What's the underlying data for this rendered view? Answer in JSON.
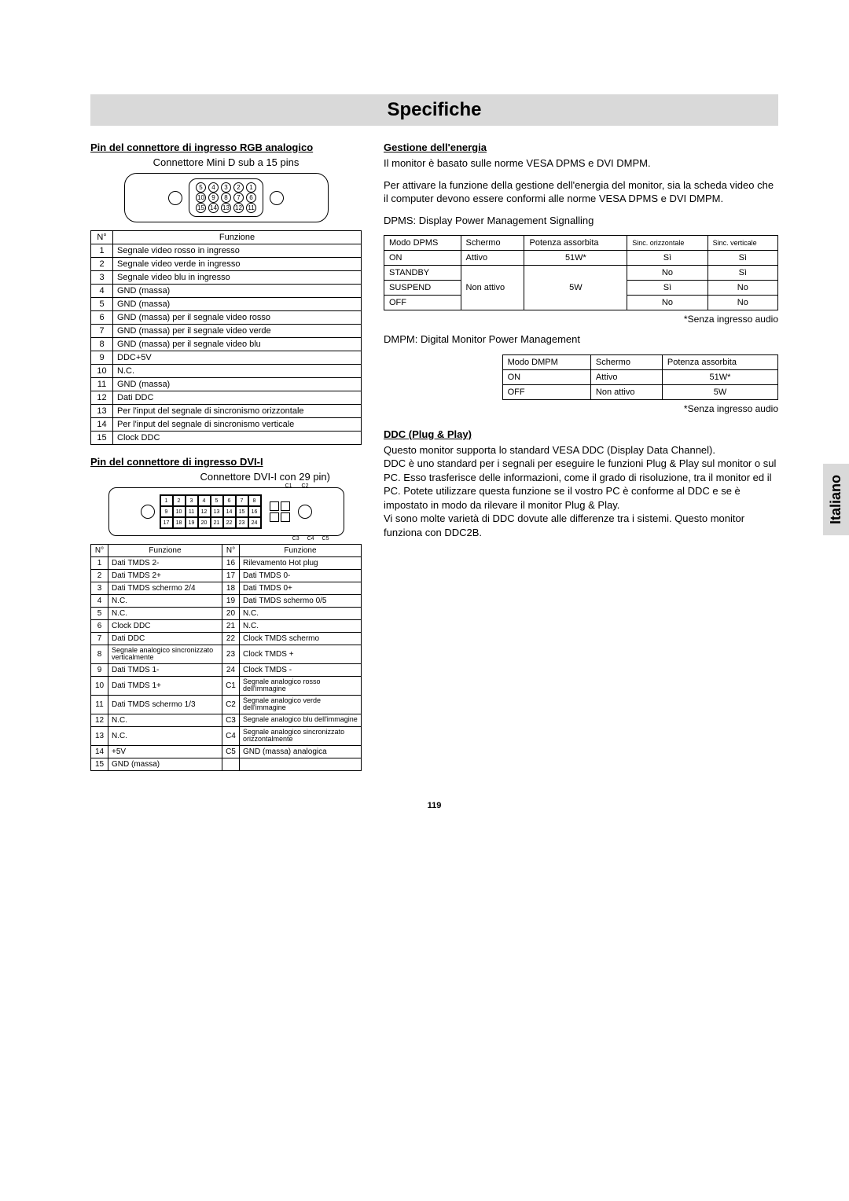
{
  "page": {
    "title": "Specifiche",
    "number": "119",
    "language_tab": "Italiano"
  },
  "left": {
    "rgb": {
      "heading": "Pin del connettore di ingresso RGB analogico",
      "sub": "Connettore Mini D sub a 15 pins",
      "th_no": "N°",
      "th_fn": "Funzione",
      "pins_row1": [
        "5",
        "4",
        "3",
        "2",
        "1"
      ],
      "pins_row2": [
        "10",
        "9",
        "8",
        "7",
        "6"
      ],
      "pins_row3": [
        "15",
        "14",
        "13",
        "12",
        "11"
      ],
      "rows": [
        {
          "n": "1",
          "f": "Segnale video rosso in ingresso"
        },
        {
          "n": "2",
          "f": "Segnale video verde in ingresso"
        },
        {
          "n": "3",
          "f": "Segnale video blu in ingresso"
        },
        {
          "n": "4",
          "f": "GND (massa)"
        },
        {
          "n": "5",
          "f": "GND (massa)"
        },
        {
          "n": "6",
          "f": "GND (massa) per il segnale video rosso"
        },
        {
          "n": "7",
          "f": "GND (massa) per il segnale video verde"
        },
        {
          "n": "8",
          "f": "GND (massa) per il segnale video blu"
        },
        {
          "n": "9",
          "f": "DDC+5V"
        },
        {
          "n": "10",
          "f": "N.C."
        },
        {
          "n": "11",
          "f": "GND (massa)"
        },
        {
          "n": "12",
          "f": "Dati DDC"
        },
        {
          "n": "13",
          "f": "Per l'input del segnale di sincronismo orizzontale"
        },
        {
          "n": "14",
          "f": "Per l'input del segnale di sincronismo verticale"
        },
        {
          "n": "15",
          "f": "Clock DDC"
        }
      ]
    },
    "dvi": {
      "heading": "Pin del connettore di ingresso DVI-I",
      "sub": "Connettore DVI-I con 29 pin)",
      "th_no": "N°",
      "th_fn": "Funzione",
      "grid_row1": [
        "1",
        "2",
        "3",
        "4",
        "5",
        "6",
        "7",
        "8"
      ],
      "grid_row2": [
        "9",
        "10",
        "11",
        "12",
        "13",
        "14",
        "15",
        "16"
      ],
      "grid_row3": [
        "17",
        "18",
        "19",
        "20",
        "21",
        "22",
        "23",
        "24"
      ],
      "labels_top": [
        "C1",
        "C2"
      ],
      "labels_bot": [
        "C3",
        "C4",
        "C5"
      ],
      "rows": [
        {
          "n1": "1",
          "f1": "Dati TMDS 2-",
          "n2": "16",
          "f2": "Rilevamento Hot plug"
        },
        {
          "n1": "2",
          "f1": "Dati TMDS 2+",
          "n2": "17",
          "f2": "Dati TMDS 0-"
        },
        {
          "n1": "3",
          "f1": "Dati TMDS schermo 2/4",
          "n2": "18",
          "f2": "Dati TMDS 0+"
        },
        {
          "n1": "4",
          "f1": "N.C.",
          "n2": "19",
          "f2": "Dati TMDS schermo 0/5"
        },
        {
          "n1": "5",
          "f1": "N.C.",
          "n2": "20",
          "f2": "N.C."
        },
        {
          "n1": "6",
          "f1": "Clock DDC",
          "n2": "21",
          "f2": "N.C."
        },
        {
          "n1": "7",
          "f1": "Dati DDC",
          "n2": "22",
          "f2": "Clock TMDS schermo"
        },
        {
          "n1": "8",
          "f1": "Segnale analogico sincronizzato verticalmente",
          "n2": "23",
          "f2": "Clock TMDS +"
        },
        {
          "n1": "9",
          "f1": "Dati TMDS 1-",
          "n2": "24",
          "f2": "Clock TMDS -"
        },
        {
          "n1": "10",
          "f1": "Dati TMDS 1+",
          "n2": "C1",
          "f2": "Segnale analogico rosso dell'immagine"
        },
        {
          "n1": "11",
          "f1": "Dati TMDS schermo 1/3",
          "n2": "C2",
          "f2": "Segnale analogico verde dell'immagine"
        },
        {
          "n1": "12",
          "f1": "N.C.",
          "n2": "C3",
          "f2": "Segnale analogico blu dell'immagine"
        },
        {
          "n1": "13",
          "f1": "N.C.",
          "n2": "C4",
          "f2": "Segnale analogico sincronizzato orizzontalmente"
        },
        {
          "n1": "14",
          "f1": "+5V",
          "n2": "C5",
          "f2": "GND (massa) analogica"
        },
        {
          "n1": "15",
          "f1": "GND (massa)",
          "n2": "",
          "f2": ""
        }
      ]
    }
  },
  "right": {
    "power": {
      "heading": "Gestione dell'energia",
      "para1": "Il monitor è basato sulle norme VESA DPMS e DVI DMPM.",
      "para2": "Per attivare la funzione della gestione dell'energia del monitor, sia la scheda video che il computer devono essere conformi alle norme VESA DPMS e DVI DMPM.",
      "para3": "DPMS: Display Power Management Signalling",
      "note": "*Senza ingresso audio",
      "dpms": {
        "h1": "Modo DPMS",
        "h2": "Schermo",
        "h3": "Potenza assorbita",
        "h4": "Sinc. orizzontale",
        "h5": "Sinc. verticale",
        "rows": [
          {
            "c1": "ON",
            "c2": "Attivo",
            "c3": "51W*",
            "c4": "Sì",
            "c5": "Sì"
          },
          {
            "c1": "STANDBY",
            "c2": "",
            "c3": "",
            "c4": "No",
            "c5": "Sì"
          },
          {
            "c1": "SUSPEND",
            "c2": "Non attivo",
            "c3": "5W",
            "c4": "Sì",
            "c5": "No"
          },
          {
            "c1": "OFF",
            "c2": "",
            "c3": "",
            "c4": "No",
            "c5": "No"
          }
        ]
      },
      "para4": "DMPM: Digital Monitor Power Management",
      "dmpm": {
        "h1": "Modo DMPM",
        "h2": "Schermo",
        "h3": "Potenza assorbita",
        "rows": [
          {
            "c1": "ON",
            "c2": "Attivo",
            "c3": "51W*"
          },
          {
            "c1": "OFF",
            "c2": "Non attivo",
            "c3": "5W"
          }
        ]
      },
      "note2": "*Senza ingresso audio"
    },
    "ddc": {
      "heading": "DDC (Plug & Play)",
      "para1": "Questo monitor supporta lo standard VESA DDC (Display Data Channel).",
      "para2": "DDC è uno standard per i segnali per eseguire le funzioni Plug & Play sul monitor o sul PC. Esso trasferisce delle informazioni, come il grado di risoluzione, tra il monitor ed il PC. Potete utilizzare questa funzione se il vostro PC è conforme al DDC e se è impostato in modo da rilevare il monitor Plug & Play.",
      "para3": "Vi sono molte varietà di DDC dovute alle differenze tra i sistemi. Questo monitor funziona con DDC2B."
    }
  }
}
